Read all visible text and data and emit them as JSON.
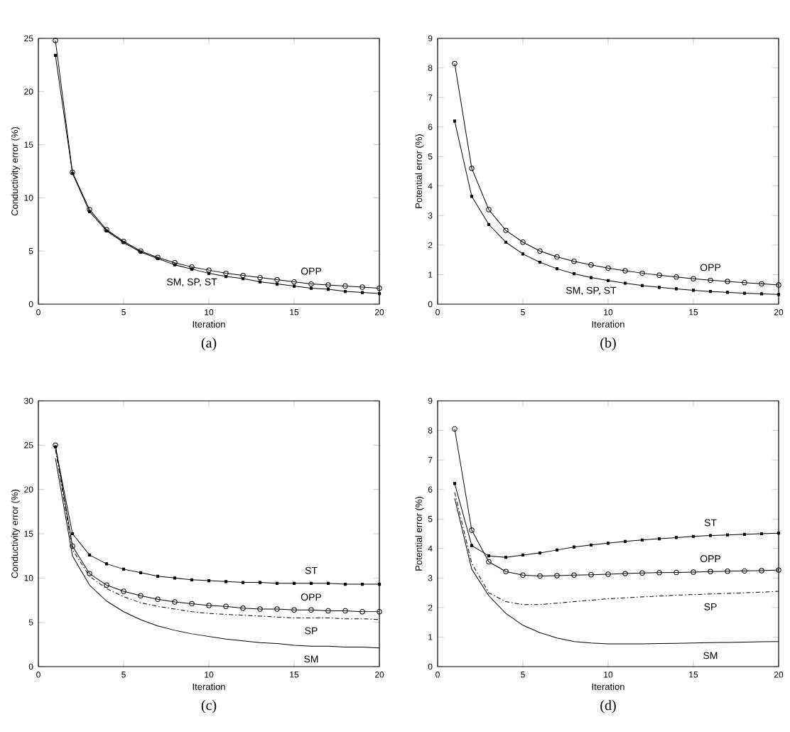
{
  "chart_data": [
    {
      "type": "line",
      "title": "(a)",
      "xlabel": "Iteration",
      "ylabel": "Conductivity error (%)",
      "x": [
        1,
        2,
        3,
        4,
        5,
        6,
        7,
        8,
        9,
        10,
        11,
        12,
        13,
        14,
        15,
        16,
        17,
        18,
        19,
        20
      ],
      "xlim": [
        0,
        20
      ],
      "xticks": [
        0,
        5,
        10,
        15,
        20
      ],
      "ylim": [
        0,
        25
      ],
      "yticks": [
        0,
        5,
        10,
        15,
        20,
        25
      ],
      "series": [
        {
          "name": "OPP",
          "color": "#000000",
          "marker": "circle",
          "line_style": "solid",
          "values": [
            24.8,
            12.4,
            8.9,
            7.0,
            5.9,
            5.0,
            4.4,
            3.9,
            3.5,
            3.2,
            2.9,
            2.7,
            2.5,
            2.3,
            2.1,
            1.9,
            1.8,
            1.7,
            1.6,
            1.5
          ]
        },
        {
          "name": "SM, SP, ST",
          "color": "#000000",
          "marker": "square",
          "line_style": "solid",
          "values": [
            23.4,
            12.3,
            8.7,
            6.9,
            5.8,
            4.9,
            4.3,
            3.7,
            3.3,
            2.9,
            2.6,
            2.4,
            2.1,
            1.9,
            1.7,
            1.5,
            1.4,
            1.2,
            1.1,
            1.0
          ]
        }
      ]
    },
    {
      "type": "line",
      "title": "(b)",
      "xlabel": "Iteration",
      "ylabel": "Potential error (%)",
      "x": [
        1,
        2,
        3,
        4,
        5,
        6,
        7,
        8,
        9,
        10,
        11,
        12,
        13,
        14,
        15,
        16,
        17,
        18,
        19,
        20
      ],
      "xlim": [
        0,
        20
      ],
      "xticks": [
        0,
        5,
        10,
        15,
        20
      ],
      "ylim": [
        0,
        9
      ],
      "yticks": [
        0,
        1,
        2,
        3,
        4,
        5,
        6,
        7,
        8,
        9
      ],
      "series": [
        {
          "name": "OPP",
          "color": "#000000",
          "marker": "circle",
          "line_style": "solid",
          "values": [
            8.15,
            4.6,
            3.2,
            2.5,
            2.1,
            1.8,
            1.6,
            1.45,
            1.33,
            1.22,
            1.13,
            1.05,
            0.98,
            0.92,
            0.86,
            0.81,
            0.77,
            0.73,
            0.69,
            0.65
          ]
        },
        {
          "name": "SM, SP, ST",
          "color": "#000000",
          "marker": "square",
          "line_style": "solid",
          "values": [
            6.2,
            3.65,
            2.7,
            2.1,
            1.7,
            1.42,
            1.2,
            1.03,
            0.9,
            0.8,
            0.71,
            0.63,
            0.57,
            0.52,
            0.47,
            0.43,
            0.4,
            0.37,
            0.35,
            0.33
          ]
        }
      ]
    },
    {
      "type": "line",
      "title": "(c)",
      "xlabel": "Iteration",
      "ylabel": "Conductivity error (%)",
      "x": [
        1,
        2,
        3,
        4,
        5,
        6,
        7,
        8,
        9,
        10,
        11,
        12,
        13,
        14,
        15,
        16,
        17,
        18,
        19,
        20
      ],
      "xlim": [
        0,
        20
      ],
      "xticks": [
        0,
        5,
        10,
        15,
        20
      ],
      "ylim": [
        0,
        30
      ],
      "yticks": [
        0,
        5,
        10,
        15,
        20,
        25,
        30
      ],
      "series": [
        {
          "name": "ST",
          "color": "#000000",
          "marker": "square",
          "line_style": "solid",
          "values": [
            24.8,
            15.0,
            12.6,
            11.6,
            11.0,
            10.6,
            10.2,
            10.0,
            9.8,
            9.7,
            9.6,
            9.5,
            9.5,
            9.4,
            9.4,
            9.4,
            9.4,
            9.3,
            9.3,
            9.3
          ]
        },
        {
          "name": "OPP",
          "color": "#000000",
          "marker": "circle",
          "line_style": "solid",
          "values": [
            25.0,
            13.6,
            10.5,
            9.2,
            8.5,
            8.0,
            7.6,
            7.3,
            7.1,
            6.9,
            6.8,
            6.6,
            6.5,
            6.5,
            6.4,
            6.4,
            6.3,
            6.3,
            6.2,
            6.2
          ]
        },
        {
          "name": "SP",
          "color": "#000000",
          "marker": "none",
          "line_style": "dashed",
          "values": [
            24.5,
            13.2,
            10.2,
            8.8,
            7.9,
            7.2,
            6.8,
            6.5,
            6.2,
            6.0,
            5.9,
            5.8,
            5.7,
            5.6,
            5.5,
            5.5,
            5.5,
            5.4,
            5.4,
            5.3
          ]
        },
        {
          "name": "SM",
          "color": "#000000",
          "marker": "none",
          "line_style": "solid",
          "values": [
            23.5,
            12.5,
            9.2,
            7.4,
            6.2,
            5.3,
            4.6,
            4.1,
            3.7,
            3.4,
            3.1,
            2.9,
            2.7,
            2.6,
            2.4,
            2.3,
            2.3,
            2.2,
            2.2,
            2.1
          ]
        }
      ]
    },
    {
      "type": "line",
      "title": "(d)",
      "xlabel": "Iteration",
      "ylabel": "Potential error (%)",
      "x": [
        1,
        2,
        3,
        4,
        5,
        6,
        7,
        8,
        9,
        10,
        11,
        12,
        13,
        14,
        15,
        16,
        17,
        18,
        19,
        20
      ],
      "xlim": [
        0,
        20
      ],
      "xticks": [
        0,
        5,
        10,
        15,
        20
      ],
      "ylim": [
        0,
        9
      ],
      "yticks": [
        0,
        1,
        2,
        3,
        4,
        5,
        6,
        7,
        8,
        9
      ],
      "series": [
        {
          "name": "ST",
          "color": "#000000",
          "marker": "square",
          "line_style": "solid",
          "values": [
            6.2,
            4.1,
            3.75,
            3.7,
            3.78,
            3.85,
            3.95,
            4.05,
            4.12,
            4.18,
            4.24,
            4.29,
            4.33,
            4.37,
            4.41,
            4.44,
            4.46,
            4.48,
            4.5,
            4.52
          ]
        },
        {
          "name": "OPP",
          "color": "#000000",
          "marker": "circle",
          "line_style": "solid",
          "values": [
            8.05,
            4.62,
            3.55,
            3.22,
            3.1,
            3.07,
            3.08,
            3.1,
            3.11,
            3.13,
            3.15,
            3.17,
            3.18,
            3.19,
            3.2,
            3.22,
            3.23,
            3.24,
            3.25,
            3.27
          ]
        },
        {
          "name": "SP",
          "color": "#000000",
          "marker": "none",
          "line_style": "dashed",
          "values": [
            5.9,
            3.5,
            2.5,
            2.2,
            2.1,
            2.1,
            2.15,
            2.2,
            2.25,
            2.3,
            2.33,
            2.36,
            2.39,
            2.42,
            2.44,
            2.46,
            2.48,
            2.5,
            2.52,
            2.55
          ]
        },
        {
          "name": "SM",
          "color": "#000000",
          "marker": "none",
          "line_style": "solid",
          "values": [
            5.7,
            3.3,
            2.4,
            1.8,
            1.4,
            1.15,
            0.97,
            0.85,
            0.8,
            0.77,
            0.77,
            0.77,
            0.78,
            0.79,
            0.8,
            0.81,
            0.82,
            0.83,
            0.84,
            0.85
          ]
        }
      ]
    }
  ]
}
